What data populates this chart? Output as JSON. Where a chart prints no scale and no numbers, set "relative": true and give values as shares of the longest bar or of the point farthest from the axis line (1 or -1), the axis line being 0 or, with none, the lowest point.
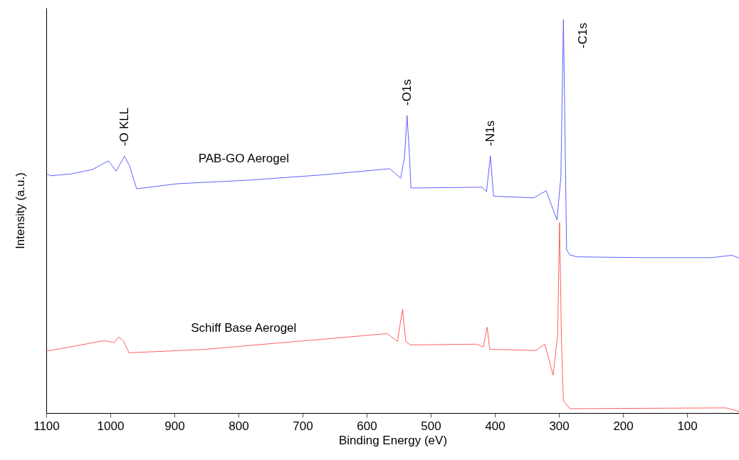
{
  "chart_data": {
    "type": "line",
    "xlabel": "Binding Energy (eV)",
    "ylabel": "Intensity (a.u.)",
    "relative": true,
    "tick_labels": "x",
    "marker": "none",
    "line_style": "solid",
    "xlim": [
      1100,
      19
    ],
    "xticks": [
      1100,
      1000,
      900,
      800,
      700,
      600,
      500,
      400,
      300,
      200,
      100
    ],
    "series": [
      {
        "name": "PAB-GO Aerogel",
        "color": "#4d4dff",
        "x": [
          1100,
          1094,
          1061,
          1028,
          1003,
          991,
          978,
          970,
          959,
          894,
          783,
          672,
          564,
          547,
          541,
          537,
          533,
          531,
          420,
          413,
          407,
          402,
          339,
          320,
          303,
          297,
          293,
          288,
          283,
          272,
          172,
          61,
          30,
          19
        ],
        "values": [
          0.61,
          0.603,
          0.608,
          0.619,
          0.641,
          0.615,
          0.653,
          0.628,
          0.57,
          0.583,
          0.592,
          0.605,
          0.621,
          0.597,
          0.65,
          0.756,
          0.65,
          0.572,
          0.574,
          0.563,
          0.653,
          0.551,
          0.547,
          0.565,
          0.491,
          0.6,
          1.0,
          0.415,
          0.402,
          0.397,
          0.395,
          0.395,
          0.401,
          0.394
        ]
      },
      {
        "name": "Schiff Base Aerogel",
        "color": "#ff4d4d",
        "x": [
          1100,
          1009,
          994,
          987,
          979,
          971,
          850,
          731,
          651,
          568,
          552,
          544,
          539,
          532,
          428,
          418,
          412,
          408,
          336,
          322,
          309,
          302,
          299,
          296,
          293,
          283,
          39,
          19
        ],
        "values": [
          0.157,
          0.184,
          0.179,
          0.193,
          0.182,
          0.153,
          0.162,
          0.179,
          0.19,
          0.202,
          0.182,
          0.264,
          0.182,
          0.173,
          0.175,
          0.168,
          0.218,
          0.162,
          0.159,
          0.175,
          0.096,
          0.2,
          0.484,
          0.18,
          0.031,
          0.011,
          0.013,
          0.004
        ]
      }
    ],
    "annotations": [
      {
        "text": "-O KLL",
        "x": 978,
        "y": 0.653
      },
      {
        "text": "-O1s",
        "x": 537,
        "y": 0.756
      },
      {
        "text": "-N1s",
        "x": 407,
        "y": 0.653
      },
      {
        "text": "-C1s",
        "x": 293,
        "y": 1.0
      }
    ]
  }
}
